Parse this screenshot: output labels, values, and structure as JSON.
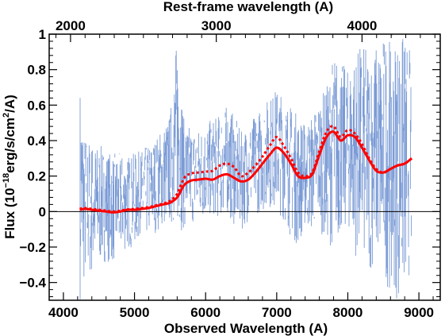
{
  "chart_data": {
    "type": "line",
    "top_axis_label": "Rest-frame wavelength (A)",
    "top_ticks": [
      "2000",
      "3000",
      "4000"
    ],
    "top_tick_values": [
      2000,
      3000,
      4000
    ],
    "redshift_factor": 2.05,
    "xlabel": "Observed Wavelength (A)",
    "ylabel_parts": {
      "pre": "Flux (10",
      "exp1": "−18",
      "mid": "erg/s/cm",
      "exp2": "2",
      "post": "/A)"
    },
    "xlim": [
      3800,
      9300
    ],
    "ylim": [
      -0.5,
      1.0
    ],
    "xticks": [
      "4000",
      "5000",
      "6000",
      "7000",
      "8000",
      "9000"
    ],
    "xtick_values": [
      4000,
      5000,
      6000,
      7000,
      8000,
      9000
    ],
    "yticks": [
      "−0.4",
      "−0.2",
      "0",
      "0.2",
      "0.4",
      "0.6",
      "0.8",
      "1"
    ],
    "ytick_values": [
      -0.4,
      -0.2,
      0,
      0.2,
      0.4,
      0.6,
      0.8,
      1.0
    ],
    "zero_line": true,
    "colors": {
      "spectrum": "#7b9bd6",
      "model": "#ff0000",
      "zero_line": "#000000"
    },
    "series": [
      {
        "style": "spectrum-noise-band",
        "x": [
          4230,
          4300,
          4400,
          4500,
          4600,
          4700,
          4800,
          4900,
          5000,
          5100,
          5200,
          5300,
          5400,
          5500,
          5600,
          5700,
          5800,
          5900,
          6000,
          6100,
          6200,
          6300,
          6400,
          6500,
          6600,
          6700,
          6800,
          6900,
          7000,
          7100,
          7200,
          7300,
          7400,
          7500,
          7600,
          7700,
          7800,
          7900,
          8000,
          8100,
          8200,
          8300,
          8400,
          8500,
          8600,
          8700,
          8800,
          8900
        ],
        "upper": [
          0.75,
          0.45,
          0.4,
          0.38,
          0.35,
          0.33,
          0.33,
          0.32,
          0.33,
          0.35,
          0.38,
          0.42,
          0.48,
          0.55,
          1.0,
          0.5,
          0.48,
          0.47,
          0.5,
          0.52,
          0.55,
          0.6,
          0.55,
          0.45,
          0.5,
          0.55,
          0.6,
          0.65,
          0.7,
          0.65,
          0.6,
          0.55,
          0.5,
          0.55,
          0.65,
          0.7,
          0.9,
          0.85,
          0.8,
          0.9,
          0.95,
          0.9,
          0.95,
          1.0,
          1.0,
          1.0,
          1.0,
          0.9
        ],
        "lower": [
          -0.5,
          -0.42,
          -0.38,
          -0.32,
          -0.28,
          -0.3,
          -0.25,
          -0.22,
          -0.2,
          -0.18,
          -0.15,
          -0.12,
          -0.1,
          -0.08,
          -0.12,
          -0.1,
          -0.08,
          -0.05,
          -0.05,
          -0.03,
          -0.05,
          -0.02,
          -0.08,
          -0.12,
          -0.05,
          -0.02,
          0.0,
          0.02,
          0.0,
          -0.05,
          -0.15,
          -0.2,
          -0.1,
          -0.12,
          -0.1,
          -0.18,
          -0.2,
          -0.15,
          -0.1,
          -0.25,
          -0.3,
          -0.35,
          -0.3,
          -0.4,
          -0.45,
          -0.5,
          -0.5,
          -0.3
        ]
      },
      {
        "style": "model-solid",
        "x": [
          4230,
          4300,
          4400,
          4500,
          4600,
          4700,
          4800,
          4900,
          5000,
          5100,
          5200,
          5300,
          5400,
          5500,
          5600,
          5700,
          5800,
          5900,
          6000,
          6100,
          6200,
          6300,
          6400,
          6500,
          6600,
          6700,
          6800,
          6900,
          7000,
          7100,
          7200,
          7300,
          7400,
          7500,
          7600,
          7700,
          7800,
          7900,
          8000,
          8100,
          8200,
          8300,
          8400,
          8500,
          8600,
          8700,
          8800,
          8900
        ],
        "values": [
          0.01,
          0.015,
          0.01,
          0.005,
          0.0,
          -0.005,
          0.0,
          0.01,
          0.01,
          0.015,
          0.02,
          0.03,
          0.04,
          0.05,
          0.08,
          0.15,
          0.175,
          0.18,
          0.185,
          0.18,
          0.2,
          0.21,
          0.19,
          0.17,
          0.18,
          0.22,
          0.27,
          0.32,
          0.36,
          0.33,
          0.27,
          0.2,
          0.19,
          0.21,
          0.32,
          0.42,
          0.45,
          0.4,
          0.43,
          0.42,
          0.36,
          0.29,
          0.23,
          0.22,
          0.24,
          0.26,
          0.27,
          0.3
        ]
      },
      {
        "style": "model-dotted",
        "x": [
          4230,
          4300,
          4400,
          4500,
          4600,
          4700,
          4800,
          4900,
          5000,
          5100,
          5200,
          5300,
          5400,
          5500,
          5600,
          5700,
          5800,
          5900,
          6000,
          6100,
          6200,
          6300,
          6400,
          6500,
          6600,
          6700,
          6800,
          6900,
          7000,
          7100,
          7200,
          7300,
          7400,
          7500,
          7600,
          7700,
          7800,
          7900,
          8000,
          8100,
          8200,
          8300,
          8400,
          8500,
          8600,
          8700,
          8800,
          8900
        ],
        "values": [
          0.015,
          0.02,
          0.015,
          0.01,
          0.005,
          0.0,
          0.005,
          0.012,
          0.015,
          0.02,
          0.025,
          0.035,
          0.045,
          0.06,
          0.1,
          0.19,
          0.215,
          0.22,
          0.225,
          0.23,
          0.26,
          0.27,
          0.25,
          0.2,
          0.22,
          0.26,
          0.31,
          0.37,
          0.42,
          0.37,
          0.3,
          0.22,
          0.2,
          0.22,
          0.34,
          0.45,
          0.48,
          0.42,
          0.46,
          0.44,
          0.38,
          0.3,
          0.24,
          0.22,
          0.24,
          0.26,
          0.27,
          0.3
        ]
      }
    ]
  }
}
